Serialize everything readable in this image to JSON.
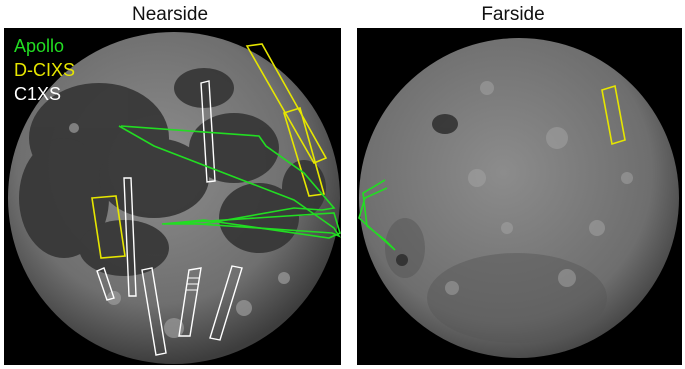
{
  "panels": {
    "nearside": {
      "title": "Nearside"
    },
    "farside": {
      "title": "Farside"
    }
  },
  "legend": [
    {
      "label": "Apollo",
      "color": "#22dd22"
    },
    {
      "label": "D-CIXS",
      "color": "#e6e600"
    },
    {
      "label": "C1XS",
      "color": "#ffffff"
    }
  ],
  "colors": {
    "background": "#000000",
    "moon_highlands": "#8a8a8a",
    "moon_maria": "#3a3a3a"
  }
}
